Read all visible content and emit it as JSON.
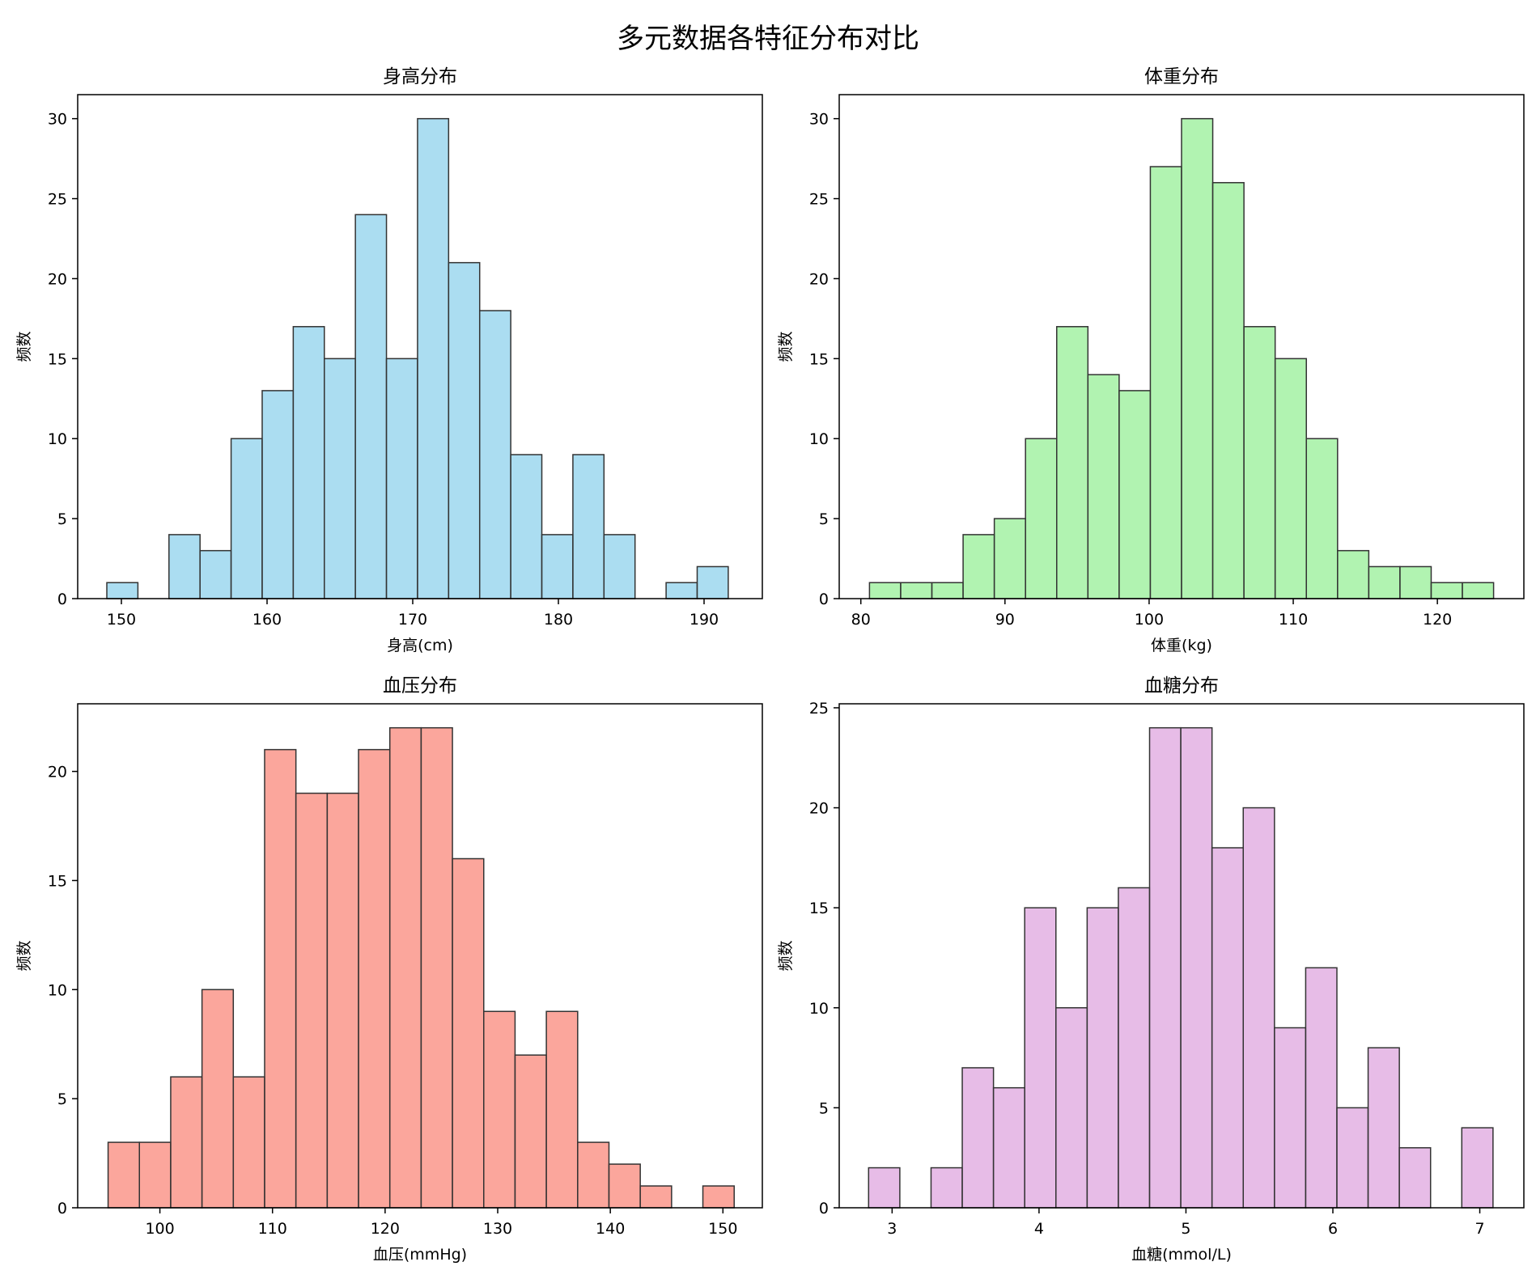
{
  "figure": {
    "suptitle": "多元数据各特征分布对比"
  },
  "chart_data": [
    {
      "type": "bar",
      "title": "身高分布",
      "xlabel": "身高(cm)",
      "ylabel": "频数",
      "color": "#87CEEB",
      "edgecolor": "#333333",
      "xlim": [
        147.0,
        194.0
      ],
      "ylim": [
        0,
        31.5
      ],
      "xticks": [
        150,
        160,
        170,
        180,
        190
      ],
      "yticks": [
        0,
        5,
        10,
        15,
        20,
        25,
        30
      ],
      "bin_start": 149.0,
      "bin_width": 2.133,
      "values": [
        1,
        0,
        4,
        3,
        10,
        13,
        17,
        15,
        24,
        15,
        30,
        21,
        18,
        9,
        4,
        9,
        4,
        0,
        1,
        2
      ]
    },
    {
      "type": "bar",
      "title": "体重分布",
      "xlabel": "体重(kg)",
      "ylabel": "频数",
      "color": "#90EE90",
      "edgecolor": "#333333",
      "xlim": [
        78.5,
        126.0
      ],
      "ylim": [
        0,
        31.5
      ],
      "xticks": [
        80,
        90,
        100,
        110,
        120
      ],
      "yticks": [
        0,
        5,
        10,
        15,
        20,
        25,
        30
      ],
      "bin_start": 80.6,
      "bin_width": 2.165,
      "values": [
        1,
        1,
        1,
        4,
        5,
        10,
        17,
        14,
        13,
        27,
        30,
        26,
        17,
        15,
        10,
        3,
        2,
        2,
        1,
        1
      ]
    },
    {
      "type": "bar",
      "title": "血压分布",
      "xlabel": "血压(mmHg)",
      "ylabel": "频数",
      "color": "#FA8072",
      "edgecolor": "#333333",
      "xlim": [
        92.7,
        153.5
      ],
      "ylim": [
        0,
        23.1
      ],
      "xticks": [
        100,
        110,
        120,
        130,
        140,
        150
      ],
      "yticks": [
        0,
        5,
        10,
        15,
        20
      ],
      "bin_start": 95.4,
      "bin_width": 2.78,
      "values": [
        3,
        3,
        6,
        10,
        6,
        21,
        19,
        19,
        21,
        22,
        22,
        16,
        9,
        7,
        9,
        3,
        2,
        1,
        0,
        1
      ]
    },
    {
      "type": "bar",
      "title": "血糖分布",
      "xlabel": "血糖(mmol/L)",
      "ylabel": "频数",
      "color": "#DDA0DD",
      "edgecolor": "#333333",
      "xlim": [
        2.64,
        7.3
      ],
      "ylim": [
        0,
        25.2
      ],
      "xticks": [
        3,
        4,
        5,
        6,
        7
      ],
      "yticks": [
        0,
        5,
        10,
        15,
        20,
        25
      ],
      "bin_start": 2.84,
      "bin_width": 0.2125,
      "values": [
        2,
        0,
        2,
        7,
        6,
        15,
        10,
        15,
        16,
        24,
        24,
        18,
        20,
        9,
        12,
        5,
        8,
        3,
        0,
        4
      ]
    }
  ]
}
